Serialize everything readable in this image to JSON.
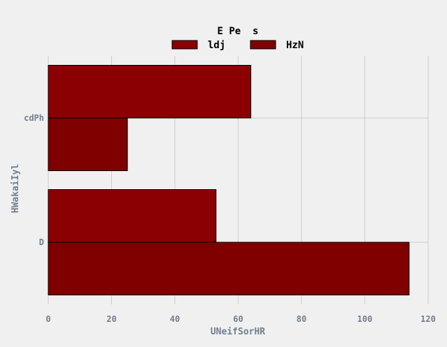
{
  "chart_data": {
    "type": "bar",
    "orientation": "horizontal",
    "categories": [
      "D",
      "cdPh"
    ],
    "series": [
      {
        "name": "ldj",
        "values": [
          53,
          64
        ],
        "color": "#8b0000"
      },
      {
        "name": "HzN",
        "values": [
          114,
          25
        ],
        "color": "#800000"
      }
    ],
    "legend_title": "E Pe  s",
    "legend_placement": "top-center",
    "xlabel": "UNeifSorHR",
    "ylabel": "HWakaiIyl",
    "xlim": [
      0,
      120
    ],
    "xticks": [
      0,
      20,
      40,
      60,
      80,
      100,
      120
    ],
    "grid": true,
    "bar_edge_color": "#000000"
  }
}
